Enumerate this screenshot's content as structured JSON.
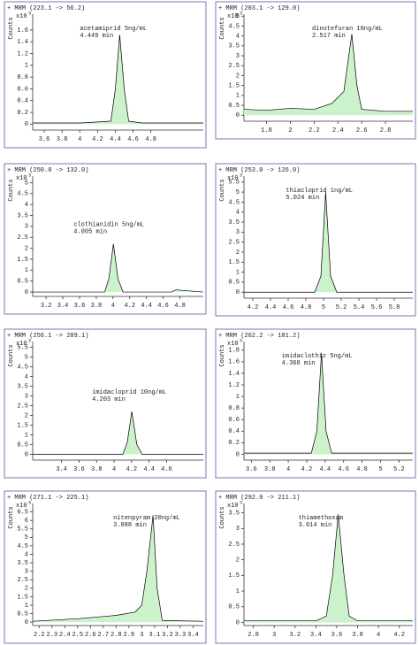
{
  "chart_data": [
    {
      "type": "line",
      "title": "+ MRM (223.1 -> 56.2)",
      "ylabel": "Counts",
      "y_multiplier": "x10",
      "y_exponent": "3",
      "annotations": [
        "acetamiprid 5ng/mL",
        "4.449 min"
      ],
      "x": [
        3.47,
        4.0,
        4.35,
        4.4,
        4.449,
        4.5,
        4.55,
        4.7,
        5.39
      ],
      "series": [
        {
          "color": "#000000",
          "fill": "#ccf2cc",
          "values": [
            0.02,
            0.02,
            0.05,
            0.6,
            1.52,
            0.6,
            0.05,
            0.02,
            0.02
          ]
        }
      ],
      "xlim": [
        3.47,
        5.39
      ],
      "ylim": [
        -0.1,
        1.87
      ],
      "xticks": [
        3.6,
        3.8,
        4,
        4.2,
        4.4,
        4.6,
        4.8
      ],
      "yticks": [
        0,
        0.2,
        0.4,
        0.6,
        0.8,
        1,
        1.2,
        1.4,
        1.6
      ]
    },
    {
      "type": "line",
      "title": "+ MRM (203.1 -> 129.0)",
      "ylabel": "Counts",
      "y_multiplier": "x10",
      "y_exponent": "3",
      "annotations": [
        "dinotefuran 10ng/mL",
        "2.517 min"
      ],
      "x": [
        1.61,
        1.8,
        2.0,
        2.2,
        2.3,
        2.35,
        2.4,
        2.45,
        2.48,
        2.517,
        2.56,
        2.6,
        2.8,
        3.03
      ],
      "series": [
        {
          "color": "#000000",
          "fill": "#ccf2cc",
          "values": [
            0.3,
            0.25,
            0.35,
            0.3,
            0.5,
            0.6,
            0.9,
            1.2,
            2.5,
            4.1,
            1.5,
            0.3,
            0.2,
            0.2
          ]
        }
      ],
      "xlim": [
        1.61,
        3.03
      ],
      "ylim": [
        -0.3,
        5.1
      ],
      "xticks": [
        1.8,
        2,
        2.2,
        2.4,
        2.6,
        2.8
      ],
      "yticks": [
        0,
        0.5,
        1,
        1.5,
        2,
        2.5,
        3,
        3.5,
        4,
        4.5,
        5
      ]
    },
    {
      "type": "line",
      "title": "+ MRM (250.0 -> 132.0)",
      "ylabel": "Counts",
      "y_multiplier": "x10",
      "y_exponent": "3",
      "annotations": [
        "clothianidin 5ng/mL",
        "4.005 min"
      ],
      "x": [
        3.04,
        3.9,
        3.95,
        4.005,
        4.06,
        4.12,
        4.7,
        4.75,
        5.08
      ],
      "series": [
        {
          "color": "#000000",
          "fill": "#ccf2cc",
          "values": [
            0,
            0,
            0.6,
            2.2,
            0.6,
            0,
            0,
            0.1,
            0
          ]
        }
      ],
      "xlim": [
        3.04,
        5.08
      ],
      "ylim": [
        -0.2,
        5.3
      ],
      "xticks": [
        3.2,
        3.4,
        3.6,
        3.8,
        4,
        4.2,
        4.4,
        4.6,
        4.8
      ],
      "yticks": [
        0,
        0.5,
        1,
        1.5,
        2,
        2.5,
        3,
        3.5,
        4,
        4.5,
        5
      ]
    },
    {
      "type": "line",
      "title": "+ MRM (253.0 -> 126.0)",
      "ylabel": "Counts",
      "y_multiplier": "x10",
      "y_exponent": "3",
      "annotations": [
        "thiacloprid 1ng/mL",
        "5.024 min"
      ],
      "x": [
        4.1,
        4.9,
        4.97,
        5.024,
        5.08,
        5.15,
        6.01
      ],
      "series": [
        {
          "color": "#000000",
          "fill": "#ccf2cc",
          "values": [
            0,
            0,
            0.8,
            5.0,
            0.8,
            0,
            0
          ]
        }
      ],
      "xlim": [
        4.1,
        6.01
      ],
      "ylim": [
        -0.3,
        5.8
      ],
      "xticks": [
        4.2,
        4.4,
        4.6,
        4.8,
        5,
        5.2,
        5.4,
        5.6,
        5.8
      ],
      "yticks": [
        0,
        0.5,
        1,
        1.5,
        2,
        2.5,
        3,
        3.5,
        4,
        4.5,
        5,
        5.5
      ]
    },
    {
      "type": "line",
      "title": "+ MRM (256.1 -> 209.1)",
      "ylabel": "Counts",
      "y_multiplier": "x10",
      "y_exponent": "3",
      "annotations": [
        "imidacloprid 10ng/mL",
        "4.203 min"
      ],
      "x": [
        3.07,
        4.1,
        4.15,
        4.203,
        4.26,
        4.32,
        5.02
      ],
      "series": [
        {
          "color": "#000000",
          "fill": "#ccf2cc",
          "values": [
            0,
            0,
            0.6,
            2.2,
            0.5,
            0,
            0
          ]
        }
      ],
      "xlim": [
        3.07,
        5.02
      ],
      "ylim": [
        -0.3,
        5.8
      ],
      "xticks": [
        3.4,
        3.6,
        3.8,
        4,
        4.2,
        4.4,
        4.6
      ],
      "yticks": [
        0,
        0.5,
        1,
        1.5,
        2,
        2.5,
        3,
        3.5,
        4,
        4.5,
        5,
        5.5
      ]
    },
    {
      "type": "line",
      "title": "+ MRM (262.2 -> 181.2)",
      "ylabel": "Counts",
      "y_multiplier": "x10",
      "y_exponent": "3",
      "annotations": [
        "imidaclothiz 5ng/mL",
        "4.360 min"
      ],
      "x": [
        3.52,
        4.25,
        4.31,
        4.36,
        4.41,
        4.47,
        5.35
      ],
      "series": [
        {
          "color": "#000000",
          "fill": "#ccf2cc",
          "values": [
            0.02,
            0.02,
            0.4,
            1.75,
            0.4,
            0.02,
            0.02
          ]
        }
      ],
      "xlim": [
        3.52,
        5.35
      ],
      "ylim": [
        -0.1,
        1.95
      ],
      "xticks": [
        3.6,
        3.8,
        4,
        4.2,
        4.4,
        4.6,
        4.8,
        5,
        5.2
      ],
      "yticks": [
        0,
        0.2,
        0.4,
        0.6,
        0.8,
        1,
        1.2,
        1.4,
        1.6,
        1.8
      ]
    },
    {
      "type": "line",
      "title": "+ MRM (271.1 -> 225.1)",
      "ylabel": "Counts",
      "y_multiplier": "x10",
      "y_exponent": "3",
      "annotations": [
        "nitenpyram 20ng/mL",
        "3.088 min"
      ],
      "x": [
        2.15,
        2.5,
        2.8,
        2.95,
        3.0,
        3.04,
        3.088,
        3.12,
        3.16,
        3.48
      ],
      "series": [
        {
          "color": "#000000",
          "fill": "#ccf2cc",
          "values": [
            0.05,
            0.2,
            0.4,
            0.6,
            1.0,
            3.0,
            6.3,
            2.0,
            0.1,
            0.05
          ]
        }
      ],
      "xlim": [
        2.15,
        3.48
      ],
      "ylim": [
        -0.2,
        7
      ],
      "xticks": [
        2.2,
        2.3,
        2.4,
        2.5,
        2.6,
        2.7,
        2.8,
        2.9,
        3,
        3.1,
        3.2,
        3.3,
        3.4
      ],
      "yticks": [
        0,
        0.5,
        1,
        1.5,
        2,
        2.5,
        3,
        3.5,
        4,
        4.5,
        5,
        5.5,
        6,
        6.5
      ]
    },
    {
      "type": "line",
      "title": "+ MRM (292.0 -> 211.1)",
      "ylabel": "Counts",
      "y_multiplier": "x10",
      "y_exponent": "3",
      "annotations": [
        "thiamethoxam",
        "3.614 min"
      ],
      "x": [
        2.71,
        3.4,
        3.5,
        3.56,
        3.614,
        3.67,
        3.72,
        3.8,
        4.33
      ],
      "series": [
        {
          "color": "#000000",
          "fill": "#ccf2cc",
          "values": [
            0.05,
            0.05,
            0.2,
            1.5,
            3.45,
            1.5,
            0.2,
            0.05,
            0.05
          ]
        }
      ],
      "xlim": [
        2.71,
        4.33
      ],
      "ylim": [
        -0.1,
        3.8
      ],
      "xticks": [
        2.8,
        3,
        3.2,
        3.4,
        3.6,
        3.8,
        4,
        4.2
      ],
      "yticks": [
        0,
        0.5,
        1,
        1.5,
        2,
        2.5,
        3,
        3.5
      ]
    }
  ]
}
